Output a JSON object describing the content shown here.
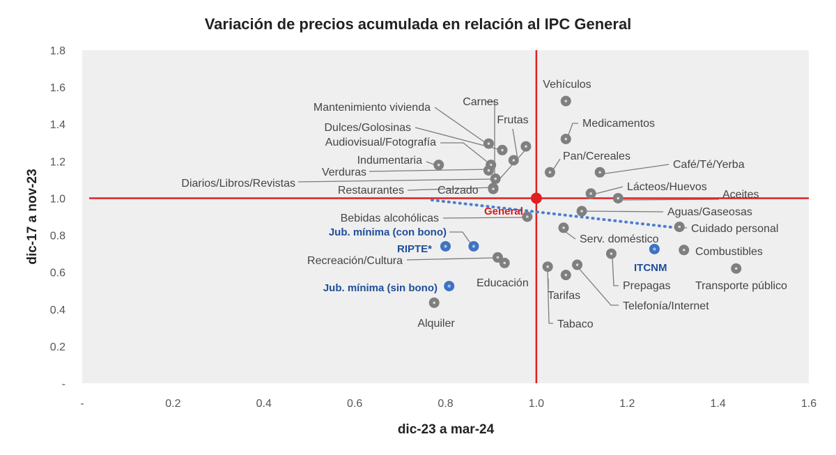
{
  "chart_data": {
    "type": "scatter",
    "title": "Variación de precios acumulada en relación al IPC General",
    "xlabel": "dic-23 a mar-24",
    "ylabel": "dic-17 a nov-23",
    "xlim": [
      0,
      1.6
    ],
    "ylim": [
      0,
      1.8
    ],
    "x_ticks": [
      "-",
      "0.2",
      "0.4",
      "0.6",
      "0.8",
      "1.0",
      "1.2",
      "1.4",
      "1.6"
    ],
    "y_ticks": [
      "-",
      "0.2",
      "0.4",
      "0.6",
      "0.8",
      "1.0",
      "1.2",
      "1.4",
      "1.6",
      "1.8"
    ],
    "reference_lines": {
      "x": 1.0,
      "y": 1.0,
      "color": "#e02020"
    },
    "trendline": {
      "style": "dotted",
      "color": "#4a7fd0",
      "x": [
        0.77,
        1.31
      ],
      "y": [
        0.99,
        0.84
      ]
    },
    "colors": {
      "gray": "#7f7f7f",
      "blue": "#3f72c2",
      "red": "#e02020"
    },
    "points": [
      {
        "label": "Vehículos",
        "x": 1.065,
        "y": 1.525,
        "color": "gray"
      },
      {
        "label": "Carnes",
        "x": 0.977,
        "y": 1.28,
        "color": "gray"
      },
      {
        "label": "Frutas",
        "x": 0.95,
        "y": 1.205,
        "color": "gray"
      },
      {
        "label": "Mantenimiento vivienda",
        "x": 0.895,
        "y": 1.295,
        "color": "gray"
      },
      {
        "label": "Dulces/Golosinas",
        "x": 0.925,
        "y": 1.26,
        "color": "gray"
      },
      {
        "label": "Audiovisual/Fotografía",
        "x": 0.9,
        "y": 1.18,
        "color": "gray"
      },
      {
        "label": "Indumentaria",
        "x": 0.785,
        "y": 1.18,
        "color": "gray"
      },
      {
        "label": "Verduras",
        "x": 0.895,
        "y": 1.15,
        "color": "gray"
      },
      {
        "label": "Diarios/Libros/Revistas",
        "x": 0.91,
        "y": 1.105,
        "color": "gray"
      },
      {
        "label": "Restaurantes",
        "x": 0.905,
        "y": 1.055,
        "color": "gray"
      },
      {
        "label": "Calzado",
        "x": 0.905,
        "y": 1.05,
        "color": "gray"
      },
      {
        "label": "Medicamentos",
        "x": 1.065,
        "y": 1.32,
        "color": "gray"
      },
      {
        "label": "Pan/Cereales",
        "x": 1.03,
        "y": 1.14,
        "color": "gray"
      },
      {
        "label": "Café/Té/Yerba",
        "x": 1.14,
        "y": 1.14,
        "color": "gray"
      },
      {
        "label": "Lácteos/Huevos",
        "x": 1.12,
        "y": 1.025,
        "color": "gray"
      },
      {
        "label": "Aceites",
        "x": 1.18,
        "y": 1.0,
        "color": "gray"
      },
      {
        "label": "Aguas/Gaseosas",
        "x": 1.1,
        "y": 0.93,
        "color": "gray"
      },
      {
        "label": "Cuidado personal",
        "x": 1.315,
        "y": 0.845,
        "color": "gray"
      },
      {
        "label": "Serv. doméstico",
        "x": 1.06,
        "y": 0.84,
        "color": "gray"
      },
      {
        "label": "Combustibles",
        "x": 1.325,
        "y": 0.72,
        "color": "gray"
      },
      {
        "label": "Prepagas",
        "x": 1.165,
        "y": 0.7,
        "color": "gray"
      },
      {
        "label": "Transporte público",
        "x": 1.44,
        "y": 0.62,
        "color": "gray"
      },
      {
        "label": "Telefonía/Internet",
        "x": 1.09,
        "y": 0.64,
        "color": "gray"
      },
      {
        "label": "Tarifas",
        "x": 1.065,
        "y": 0.585,
        "color": "gray"
      },
      {
        "label": "Tabaco",
        "x": 1.025,
        "y": 0.63,
        "color": "gray"
      },
      {
        "label": "Bebidas alcohólicas",
        "x": 0.98,
        "y": 0.9,
        "color": "gray"
      },
      {
        "label": "Recreación/Cultura",
        "x": 0.915,
        "y": 0.68,
        "color": "gray"
      },
      {
        "label": "Educación",
        "x": 0.93,
        "y": 0.65,
        "color": "gray"
      },
      {
        "label": "Alquiler",
        "x": 0.775,
        "y": 0.435,
        "color": "gray"
      },
      {
        "label": "Jub. mínima (con bono)",
        "x": 0.862,
        "y": 0.74,
        "color": "blue"
      },
      {
        "label": "RIPTE*",
        "x": 0.8,
        "y": 0.74,
        "color": "blue"
      },
      {
        "label": "Jub. mínima (sin bono)",
        "x": 0.808,
        "y": 0.525,
        "color": "blue"
      },
      {
        "label": "ITCNM",
        "x": 1.26,
        "y": 0.725,
        "color": "blue"
      },
      {
        "label": "General",
        "x": 1.0,
        "y": 1.0,
        "color": "red"
      }
    ]
  }
}
